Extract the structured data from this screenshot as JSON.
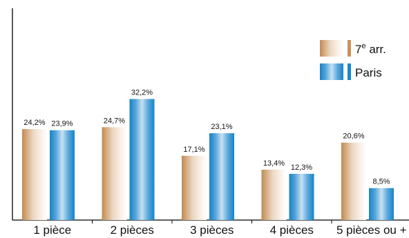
{
  "chart_data": {
    "type": "bar",
    "title": "",
    "xlabel": "",
    "ylabel": "",
    "categories": [
      "1 pièce",
      "2 pièces",
      "3 pièces",
      "4 pièces",
      "5 pièces ou +"
    ],
    "series": [
      {
        "name": "7e arr.",
        "values": [
          24.2,
          24.7,
          17.1,
          13.4,
          20.6
        ],
        "labels": [
          "24,2%",
          "24,7%",
          "17,1%",
          "13,4%",
          "20,6%"
        ],
        "color": "#c8925a"
      },
      {
        "name": "Paris",
        "values": [
          23.9,
          32.2,
          23.1,
          12.3,
          8.5
        ],
        "labels": [
          "23,9%",
          "32,2%",
          "23,1%",
          "12,3%",
          "8,5%"
        ],
        "color": "#1a86c8"
      }
    ],
    "legend_entries": [
      {
        "base": "7",
        "sup": "e",
        "rest": " arr."
      },
      {
        "base": "Paris",
        "sup": "",
        "rest": ""
      }
    ],
    "ylim": [
      0,
      35
    ],
    "grid": false,
    "legend_position": "top-right"
  }
}
